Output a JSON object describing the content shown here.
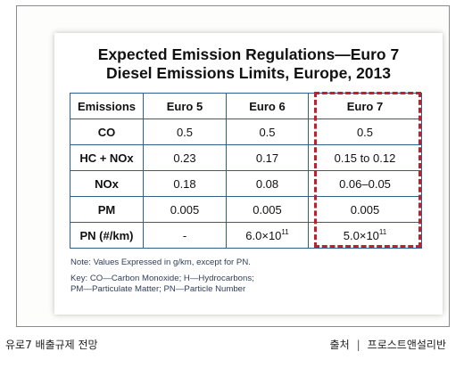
{
  "figure": {
    "title_line1": "Expected Emission Regulations—Euro 7",
    "title_line2": "Diesel Emissions Limits, Europe, 2013",
    "table": {
      "headers": [
        "Emissions",
        "Euro 5",
        "Euro 6",
        "Euro 7"
      ],
      "rows": [
        [
          "CO",
          "0.5",
          "0.5",
          "0.5"
        ],
        [
          "HC + NOx",
          "0.23",
          "0.17",
          "0.15 to 0.12"
        ],
        [
          "NOx",
          "0.18",
          "0.08",
          "0.06–0.05"
        ],
        [
          "PM",
          "0.005",
          "0.005",
          "0.005"
        ],
        [
          "PN (#/km)",
          "-",
          "6.0×10",
          "5.0×10"
        ]
      ],
      "pn_exponent_euro6": "11",
      "pn_exponent_euro7": "11",
      "highlight_color": "#c0202c",
      "border_color": "#2e5f8f"
    },
    "note": "Note: Values Expressed in g/km, except for PN.",
    "key_line1": "Key: CO—Carbon Monoxide; H—Hydrocarbons;",
    "key_line2": "PM—Particulate Matter; PN—Particle Number"
  },
  "caption": {
    "left": "유로7 배출규제 전망",
    "source_label": "출처",
    "separator": "|",
    "source": "프로스트앤설리반"
  }
}
